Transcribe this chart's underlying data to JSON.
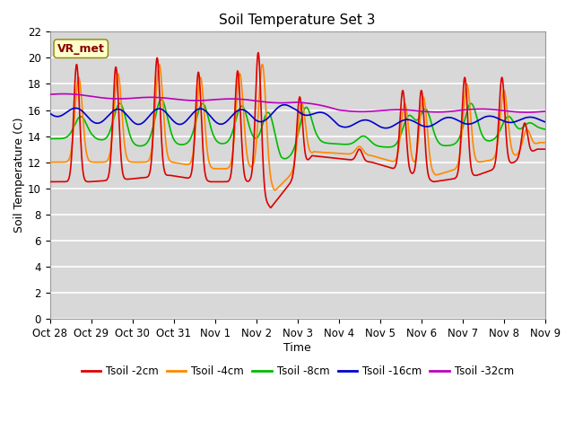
{
  "title": "Soil Temperature Set 3",
  "xlabel": "Time",
  "ylabel": "Soil Temperature (C)",
  "ylim": [
    0,
    22
  ],
  "yticks": [
    0,
    2,
    4,
    6,
    8,
    10,
    12,
    14,
    16,
    18,
    20,
    22
  ],
  "background_color": "#e8e8e8",
  "plot_bg_color": "#d8d8d8",
  "grid_color": "#ffffff",
  "annotation_text": "VR_met",
  "annotation_box_color": "#ffffcc",
  "annotation_text_color": "#880000",
  "x_tick_labels": [
    "Oct 28",
    "Oct 29",
    "Oct 30",
    "Oct 31",
    "Nov 1",
    "Nov 2",
    "Nov 3",
    "Nov 4",
    "Nov 5",
    "Nov 6",
    "Nov 7",
    "Nov 8",
    "Nov 9"
  ],
  "series": [
    {
      "label": "Tsoil -2cm",
      "color": "#dd0000",
      "linewidth": 1.2
    },
    {
      "label": "Tsoil -4cm",
      "color": "#ff8800",
      "linewidth": 1.2
    },
    {
      "label": "Tsoil -8cm",
      "color": "#00bb00",
      "linewidth": 1.2
    },
    {
      "label": "Tsoil -16cm",
      "color": "#0000cc",
      "linewidth": 1.2
    },
    {
      "label": "Tsoil -32cm",
      "color": "#bb00bb",
      "linewidth": 1.2
    }
  ]
}
